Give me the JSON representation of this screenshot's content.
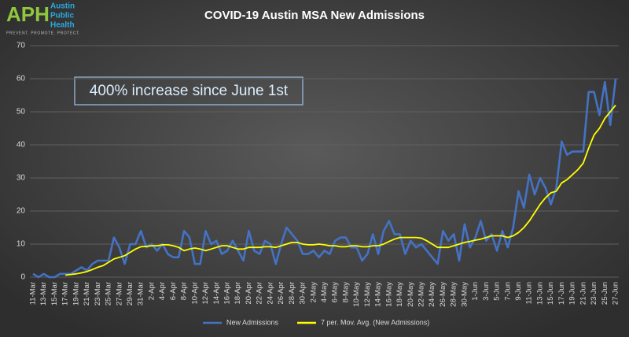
{
  "logo": {
    "abbr": "APH",
    "name": [
      "Austin",
      "Public",
      "Health"
    ],
    "tagline": "PREVENT. PROMOTE. PROTECT."
  },
  "chart_data": {
    "type": "line",
    "title": "COVID-19 Austin MSA New Admissions",
    "annotation": "400% increase since June 1st",
    "categories": [
      "11-Mar",
      null,
      "13-Mar",
      null,
      "15-Mar",
      null,
      "17-Mar",
      null,
      "19-Mar",
      null,
      "21-Mar",
      null,
      "23-Mar",
      null,
      "25-Mar",
      null,
      "27-Mar",
      null,
      "29-Mar",
      null,
      "31-Mar",
      null,
      "2-Apr",
      null,
      "4-Apr",
      null,
      "6-Apr",
      null,
      "8-Apr",
      null,
      "10-Apr",
      null,
      "12-Apr",
      null,
      "14-Apr",
      null,
      "16-Apr",
      null,
      "18-Apr",
      null,
      "20-Apr",
      null,
      "22-Apr",
      null,
      "24-Apr",
      null,
      "26-Apr",
      null,
      "28-Apr",
      null,
      "30-Apr",
      null,
      "2-May",
      null,
      "4-May",
      null,
      "6-May",
      null,
      "8-May",
      null,
      "10-May",
      null,
      "12-May",
      null,
      "14-May",
      null,
      "16-May",
      null,
      "18-May",
      null,
      "20-May",
      null,
      "22-May",
      null,
      "24-May",
      null,
      "26-May",
      null,
      "28-May",
      null,
      "30-May",
      null,
      "1-Jun",
      null,
      "3-Jun",
      null,
      "5-Jun",
      null,
      "7-Jun",
      null,
      "9-Jun",
      null,
      "11-Jun",
      null,
      "13-Jun",
      null,
      "15-Jun",
      null,
      "17-Jun",
      null,
      "19-Jun",
      null,
      "21-Jun",
      null,
      "23-Jun",
      null,
      "25-Jun",
      null,
      "27-Jun"
    ],
    "series": [
      {
        "name": "New Admissions",
        "color": "#4472c4",
        "values": [
          1,
          0,
          1,
          0,
          0,
          1,
          1,
          1,
          2,
          3,
          2,
          4,
          5,
          5,
          5,
          12,
          9,
          4,
          10,
          10,
          14,
          9,
          10,
          8,
          10,
          7,
          6,
          6,
          14,
          12,
          4,
          4,
          14,
          10,
          11,
          7,
          8,
          11,
          8,
          5,
          14,
          8,
          7,
          11,
          10,
          4,
          10,
          15,
          13,
          11,
          7,
          7,
          8,
          6,
          8,
          7,
          11,
          12,
          12,
          9,
          9,
          5,
          7,
          13,
          7,
          14,
          17,
          13,
          13,
          7,
          11,
          9,
          10,
          8,
          6,
          4,
          14,
          11,
          13,
          5,
          16,
          9,
          12,
          17,
          11,
          13,
          8,
          14,
          9,
          15,
          26,
          21,
          31,
          25,
          30,
          27,
          22,
          27,
          41,
          37,
          38,
          38,
          38,
          56,
          56,
          49,
          59,
          46,
          60
        ]
      },
      {
        "name": "7 per. Mov. Avg. (New Admissions)",
        "color": "#ffff00",
        "values": [
          null,
          null,
          null,
          null,
          null,
          null,
          0.6,
          0.8,
          1,
          1.3,
          1.7,
          2.3,
          3,
          3.5,
          4.5,
          5.5,
          6,
          6.5,
          7.5,
          8.5,
          9.2,
          9.3,
          9.5,
          9.5,
          9.8,
          9.8,
          9.5,
          9,
          8,
          8.5,
          8.8,
          8.5,
          8,
          8.5,
          9,
          9.5,
          9.5,
          9,
          8.5,
          8.5,
          9,
          9,
          9,
          9.2,
          9.2,
          9,
          9.5,
          10,
          10.5,
          10.5,
          10,
          9.8,
          9.8,
          10,
          9.8,
          9.5,
          9.5,
          9.2,
          9.2,
          9.5,
          9.5,
          9.2,
          9.2,
          9.5,
          9.5,
          10,
          10.8,
          11.5,
          12,
          12,
          12,
          12,
          11.8,
          11,
          10,
          9,
          9,
          9,
          9.5,
          10,
          10.5,
          10.8,
          11.2,
          11.5,
          12,
          12.5,
          12.5,
          12.5,
          12,
          12.5,
          13.5,
          15,
          17,
          19.5,
          22,
          24,
          25.5,
          26,
          28.5,
          29.5,
          31,
          32.5,
          34.5,
          39,
          43,
          45,
          48,
          50,
          52
        ]
      }
    ],
    "ylim": [
      0,
      70
    ],
    "yticks": [
      0,
      10,
      20,
      30,
      40,
      50,
      60,
      70
    ],
    "grid": true,
    "legend": "bottom"
  }
}
